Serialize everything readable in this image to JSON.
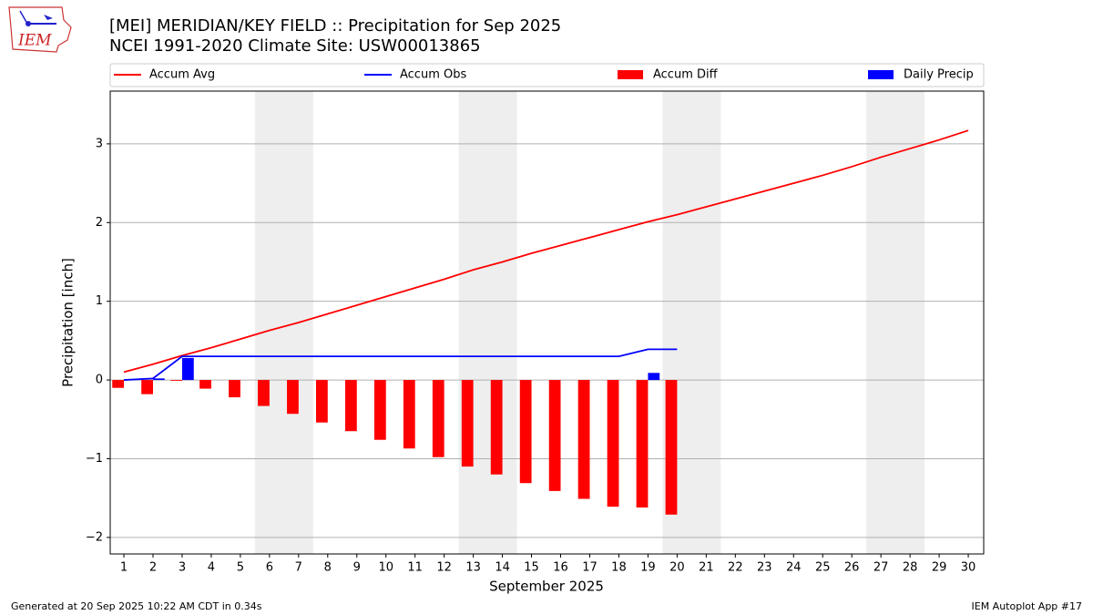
{
  "logo_text": "IEM",
  "footer_left": "Generated at 20 Sep 2025 10:22 AM CDT in 0.34s",
  "footer_right": "IEM Autoplot App #17",
  "chart_data": {
    "type": "line",
    "title": "[MEI] MERIDIAN/KEY FIELD :: Precipitation for Sep 2025",
    "subtitle": "NCEI 1991-2020 Climate Site: USW00013865",
    "x_label": "September 2025",
    "y_label": "Precipitation [inch]",
    "x": [
      1,
      2,
      3,
      4,
      5,
      6,
      7,
      8,
      9,
      10,
      11,
      12,
      13,
      14,
      15,
      16,
      17,
      18,
      19,
      20,
      21,
      22,
      23,
      24,
      25,
      26,
      27,
      28,
      29,
      30
    ],
    "xlim": [
      0.53,
      30.53
    ],
    "xticks": [
      1,
      2,
      3,
      4,
      5,
      6,
      7,
      8,
      9,
      10,
      11,
      12,
      13,
      14,
      15,
      16,
      17,
      18,
      19,
      20,
      21,
      22,
      23,
      24,
      25,
      26,
      27,
      28,
      29,
      30
    ],
    "ylim": [
      -2.21,
      3.67
    ],
    "yticks": [
      {
        "value": -2,
        "label": "−2"
      },
      {
        "value": -1,
        "label": "−1"
      },
      0,
      1,
      2,
      3
    ],
    "grid": true,
    "weekend_spans": [
      [
        5.5,
        7.5
      ],
      [
        12.5,
        14.5
      ],
      [
        19.5,
        21.5
      ],
      [
        26.5,
        28.5
      ]
    ],
    "series": [
      {
        "name": "Accum Avg",
        "type": "line",
        "color": "#ff0000",
        "values": [
          0.1,
          0.2,
          0.31,
          0.41,
          0.52,
          0.63,
          0.73,
          0.84,
          0.95,
          1.06,
          1.17,
          1.28,
          1.4,
          1.5,
          1.61,
          1.71,
          1.81,
          1.91,
          2.01,
          2.1,
          2.2,
          2.3,
          2.4,
          2.5,
          2.6,
          2.71,
          2.83,
          2.94,
          3.05,
          3.17
        ]
      },
      {
        "name": "Accum Obs",
        "type": "line",
        "color": "#0000ff",
        "values": [
          0.0,
          0.02,
          0.3,
          0.3,
          0.3,
          0.3,
          0.3,
          0.3,
          0.3,
          0.3,
          0.3,
          0.3,
          0.3,
          0.3,
          0.3,
          0.3,
          0.3,
          0.3,
          0.39,
          0.39,
          null,
          null,
          null,
          null,
          null,
          null,
          null,
          null,
          null,
          null
        ]
      },
      {
        "name": "Accum Diff",
        "type": "bar",
        "color": "#ff0000",
        "values": [
          -0.1,
          -0.18,
          -0.01,
          -0.11,
          -0.22,
          -0.33,
          -0.43,
          -0.54,
          -0.65,
          -0.76,
          -0.87,
          -0.98,
          -1.1,
          -1.2,
          -1.31,
          -1.41,
          -1.51,
          -1.61,
          -1.62,
          -1.71,
          null,
          null,
          null,
          null,
          null,
          null,
          null,
          null,
          null,
          null
        ]
      },
      {
        "name": "Daily Precip",
        "type": "bar",
        "color": "#0000ff",
        "values": [
          0.0,
          0.02,
          0.28,
          0,
          0,
          0,
          0,
          0,
          0,
          0,
          0,
          0,
          0,
          0,
          0,
          0,
          0,
          0,
          0.09,
          0.0,
          null,
          null,
          null,
          null,
          null,
          null,
          null,
          null,
          null,
          null
        ]
      }
    ]
  }
}
